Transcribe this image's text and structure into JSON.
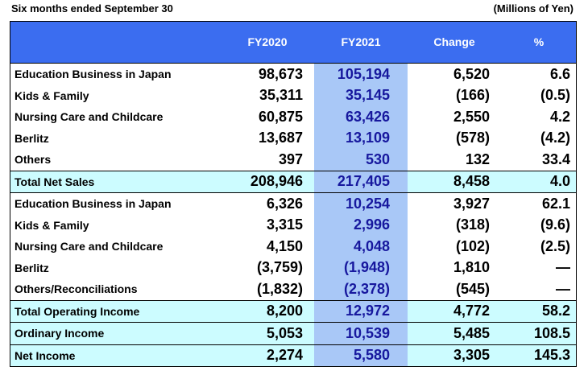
{
  "caption": {
    "left": "Six months ended September 30",
    "right": "(Millions of Yen)"
  },
  "header": {
    "col0": "",
    "col1": "FY2020",
    "col2": "FY2021",
    "col3": "Change",
    "col4": "%"
  },
  "rows": [
    {
      "label": "Education Business in Japan",
      "fy2020": "98,673",
      "fy2021": "105,194",
      "change": "6,520",
      "pct": "6.6"
    },
    {
      "label": "Kids & Family",
      "fy2020": "35,311",
      "fy2021": "35,145",
      "change": "(166)",
      "pct": "(0.5)"
    },
    {
      "label": "Nursing Care and Childcare",
      "fy2020": "60,875",
      "fy2021": "63,426",
      "change": "2,550",
      "pct": "4.2"
    },
    {
      "label": "Berlitz",
      "fy2020": "13,687",
      "fy2021": "13,109",
      "change": "(578)",
      "pct": "(4.2)"
    },
    {
      "label": "Others",
      "fy2020": "397",
      "fy2021": "530",
      "change": "132",
      "pct": "33.4"
    },
    {
      "label": "Total Net Sales",
      "fy2020": "208,946",
      "fy2021": "217,405",
      "change": "8,458",
      "pct": "4.0"
    },
    {
      "label": "Education Business in Japan",
      "fy2020": "6,326",
      "fy2021": "10,254",
      "change": "3,927",
      "pct": "62.1"
    },
    {
      "label": "Kids & Family",
      "fy2020": "3,315",
      "fy2021": "2,996",
      "change": "(318)",
      "pct": "(9.6)"
    },
    {
      "label": "Nursing Care and Childcare",
      "fy2020": "4,150",
      "fy2021": "4,048",
      "change": "(102)",
      "pct": "(2.5)"
    },
    {
      "label": "Berlitz",
      "fy2020": "(3,759)",
      "fy2021": "(1,948)",
      "change": "1,810",
      "pct": "―"
    },
    {
      "label": "Others/Reconciliations",
      "fy2020": "(1,832)",
      "fy2021": "(2,378)",
      "change": "(545)",
      "pct": "―"
    },
    {
      "label": "Total Operating Income",
      "fy2020": "8,200",
      "fy2021": "12,972",
      "change": "4,772",
      "pct": "58.2"
    },
    {
      "label": "Ordinary Income",
      "fy2020": "5,053",
      "fy2021": "10,539",
      "change": "5,485",
      "pct": "108.5"
    },
    {
      "label": "Net Income",
      "fy2020": "2,274",
      "fy2021": "5,580",
      "change": "3,305",
      "pct": "145.3"
    }
  ],
  "colors": {
    "header_bg": "#3b6df0",
    "fy2021_col_bg": "#a9c8f7",
    "fy2021_text": "#17189e",
    "total_row_bg": "#ccfcff"
  }
}
